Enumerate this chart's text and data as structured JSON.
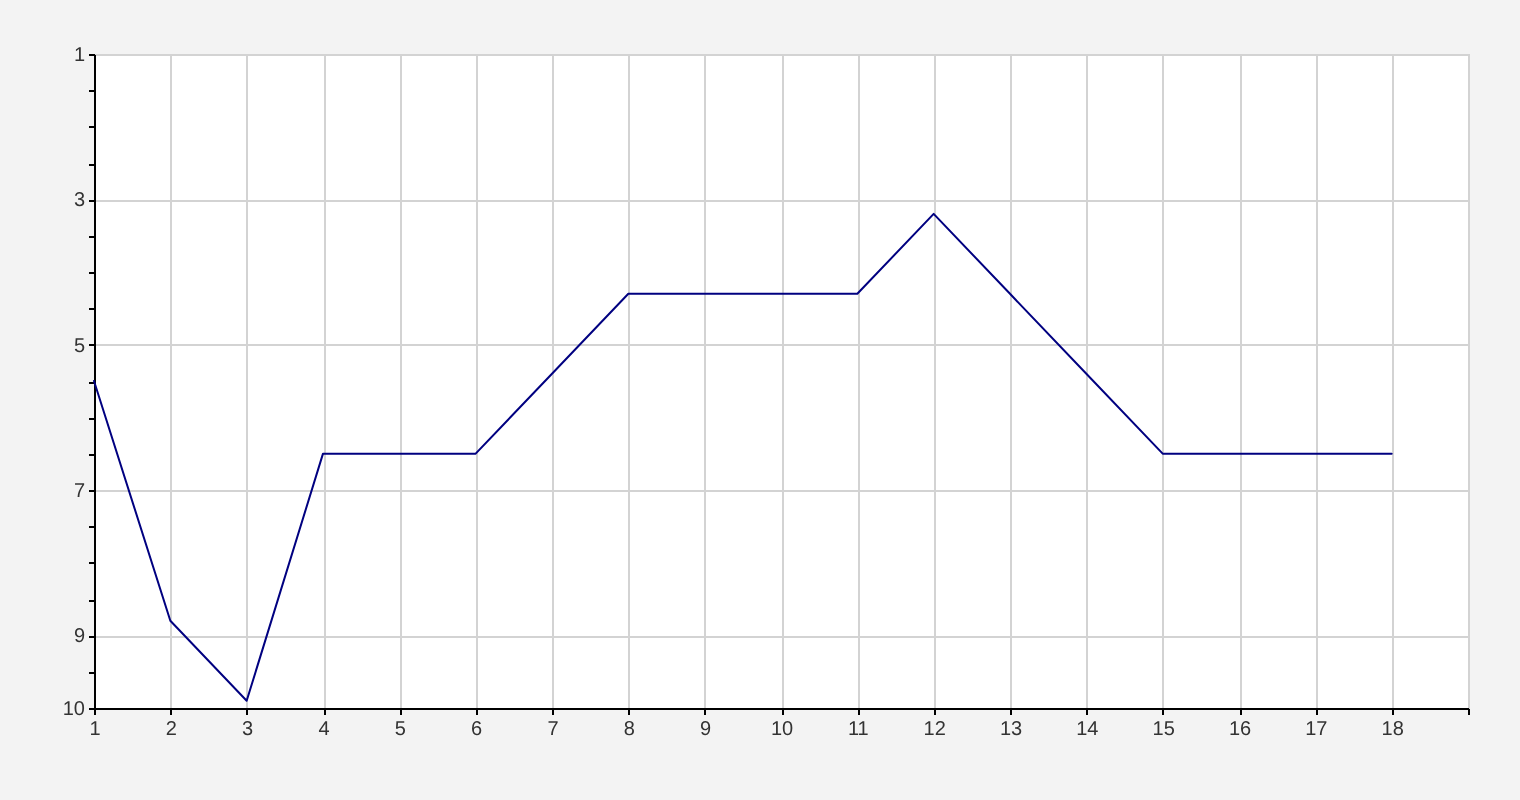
{
  "chart_data": {
    "type": "line",
    "x": [
      1,
      2,
      3,
      4,
      5,
      6,
      7,
      8,
      9,
      10,
      11,
      12,
      13,
      14,
      15,
      16,
      17,
      18
    ],
    "series": [
      {
        "color": "#000080",
        "values": [
          5.5,
          8.8,
          9.9,
          6.5,
          6.5,
          6.5,
          5.4,
          4.3,
          4.3,
          4.3,
          4.3,
          3.2,
          4.3,
          5.4,
          6.5,
          6.5,
          6.5,
          6.5
        ]
      }
    ],
    "xlim": [
      1,
      19
    ],
    "xticks": [
      1,
      2,
      3,
      4,
      5,
      6,
      7,
      8,
      9,
      10,
      11,
      12,
      13,
      14,
      15,
      16,
      17,
      18,
      {
        "value": 19,
        "label": null
      }
    ],
    "ylim": [
      10,
      1
    ],
    "yticks": [
      1,
      {
        "value": 1.5,
        "label": null
      },
      {
        "value": 2,
        "label": null
      },
      {
        "value": 2.5,
        "label": null
      },
      3,
      {
        "value": 3.5,
        "label": null
      },
      {
        "value": 4,
        "label": null
      },
      {
        "value": 4.5,
        "label": null
      },
      5,
      {
        "value": 5.5,
        "label": null
      },
      {
        "value": 6,
        "label": null
      },
      {
        "value": 6.5,
        "label": null
      },
      7,
      {
        "value": 7.5,
        "label": null
      },
      {
        "value": 8,
        "label": null
      },
      {
        "value": 8.5,
        "label": null
      },
      9,
      {
        "value": 9.5,
        "label": null
      },
      10
    ],
    "grid": true,
    "line_style": "solid"
  }
}
